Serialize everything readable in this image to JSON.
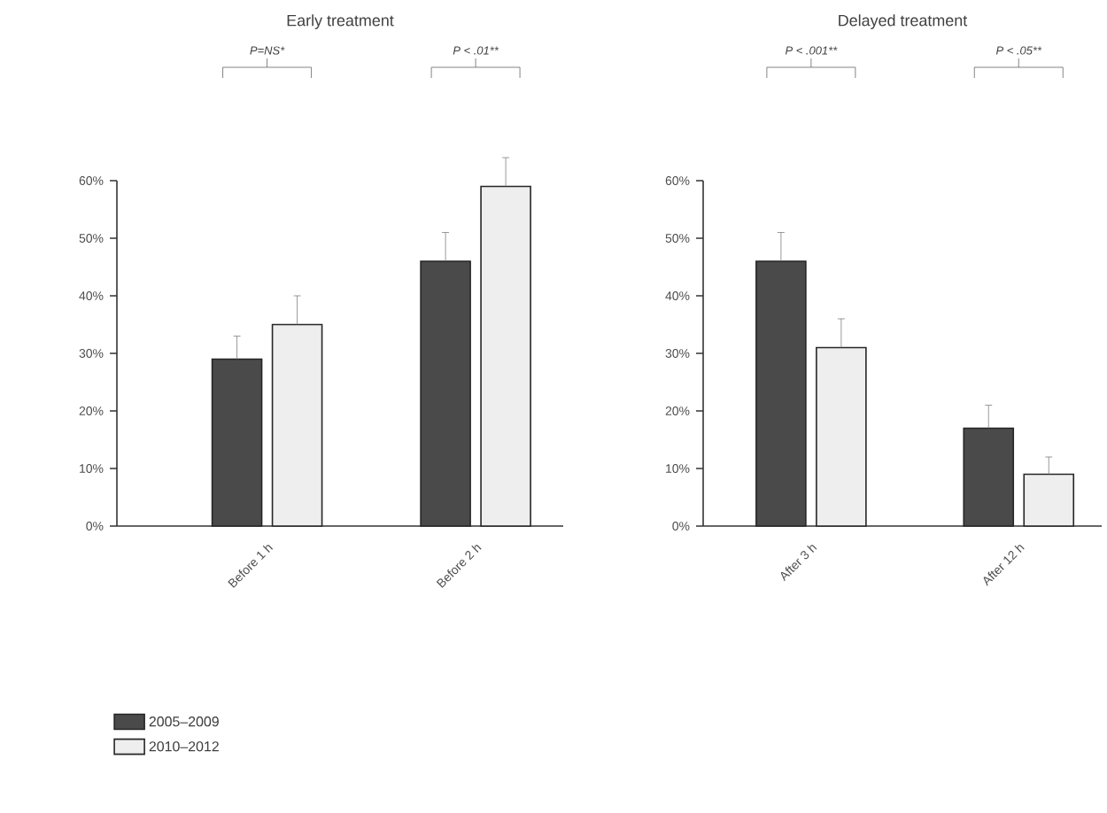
{
  "chart_data": [
    {
      "type": "bar",
      "title": "Early treatment",
      "categories": [
        "Before 1 h",
        "Before 2 h"
      ],
      "series": [
        {
          "name": "2005–2009",
          "color": "#4a4a4a",
          "values": [
            29,
            46
          ],
          "errors": [
            4,
            5
          ]
        },
        {
          "name": "2010–2012",
          "color": "#eeeeee",
          "values": [
            35,
            59
          ],
          "errors": [
            5,
            5
          ]
        }
      ],
      "ylim": [
        0,
        60
      ],
      "yticks": [
        {
          "value": 0,
          "label": "0%"
        },
        {
          "value": 10,
          "label": "10%"
        },
        {
          "value": 20,
          "label": "20%"
        },
        {
          "value": 30,
          "label": "30%"
        },
        {
          "value": 40,
          "label": "40%"
        },
        {
          "value": 50,
          "label": "50%"
        },
        {
          "value": 60,
          "label": "60%"
        }
      ],
      "annotations": [
        "P=NS*",
        "P < .01**"
      ],
      "legend": "bottom left"
    },
    {
      "type": "bar",
      "title": "Delayed treatment",
      "categories": [
        "After 3 h",
        "After 12 h"
      ],
      "series": [
        {
          "color": "#4a4a4a",
          "values": [
            46,
            17
          ],
          "errors": [
            5,
            4
          ]
        },
        {
          "color": "#eeeeee",
          "values": [
            31,
            9
          ],
          "errors": [
            5,
            3
          ]
        }
      ],
      "ylim": [
        0,
        60
      ],
      "yticks": [
        {
          "value": 0,
          "label": "0%"
        },
        {
          "value": 10,
          "label": "10%"
        },
        {
          "value": 20,
          "label": "20%"
        },
        {
          "value": 30,
          "label": "30%"
        },
        {
          "value": 40,
          "label": "40%"
        },
        {
          "value": 50,
          "label": "50%"
        },
        {
          "value": 60,
          "label": "60%"
        }
      ],
      "annotations": [
        "P < .001**",
        "P < .05**"
      ],
      "legend": false
    }
  ]
}
